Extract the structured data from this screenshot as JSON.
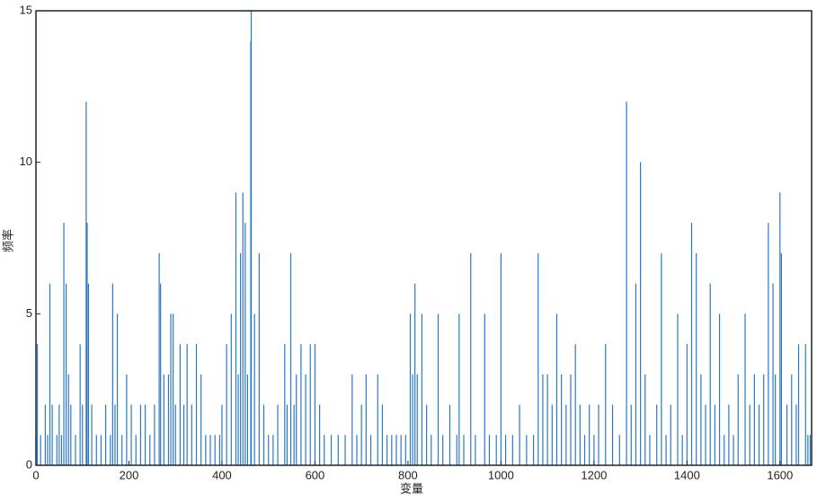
{
  "chart_data": {
    "type": "stem",
    "xlabel": "变量",
    "ylabel": "频率",
    "color": "#2b78c4",
    "xlim": [
      0,
      1668
    ],
    "ylim": [
      0,
      15
    ],
    "xticks": [
      0,
      200,
      400,
      600,
      800,
      1000,
      1200,
      1400,
      1600
    ],
    "yticks": [
      0,
      5,
      10,
      15
    ],
    "x": [
      0,
      3,
      10,
      20,
      25,
      30,
      35,
      45,
      50,
      55,
      60,
      65,
      70,
      75,
      85,
      95,
      100,
      108,
      110,
      113,
      120,
      130,
      140,
      150,
      160,
      165,
      170,
      175,
      185,
      195,
      205,
      215,
      225,
      235,
      245,
      255,
      265,
      268,
      275,
      285,
      290,
      295,
      300,
      310,
      318,
      325,
      335,
      345,
      355,
      365,
      375,
      385,
      395,
      400,
      410,
      420,
      430,
      435,
      440,
      445,
      450,
      455,
      462,
      463,
      470,
      480,
      490,
      500,
      510,
      520,
      535,
      540,
      548,
      555,
      560,
      570,
      580,
      590,
      600,
      610,
      620,
      635,
      650,
      665,
      680,
      690,
      700,
      710,
      720,
      735,
      745,
      755,
      765,
      775,
      785,
      795,
      805,
      810,
      815,
      820,
      830,
      840,
      850,
      865,
      875,
      890,
      905,
      910,
      920,
      935,
      945,
      965,
      975,
      990,
      1000,
      1010,
      1025,
      1040,
      1055,
      1070,
      1080,
      1090,
      1100,
      1110,
      1120,
      1130,
      1140,
      1150,
      1160,
      1170,
      1180,
      1190,
      1200,
      1210,
      1225,
      1240,
      1255,
      1270,
      1280,
      1290,
      1300,
      1310,
      1320,
      1335,
      1345,
      1355,
      1365,
      1380,
      1390,
      1400,
      1410,
      1420,
      1430,
      1440,
      1450,
      1460,
      1470,
      1480,
      1490,
      1500,
      1510,
      1525,
      1535,
      1545,
      1555,
      1565,
      1575,
      1585,
      1590,
      1600,
      1603,
      1615,
      1625,
      1635,
      1640,
      1655,
      1660,
      1665
    ],
    "values": [
      1,
      4,
      1,
      2,
      1,
      6,
      2,
      1,
      2,
      1,
      8,
      6,
      3,
      2,
      1,
      4,
      2,
      12,
      8,
      6,
      2,
      1,
      1,
      2,
      1,
      6,
      2,
      5,
      1,
      3,
      2,
      1,
      2,
      2,
      1,
      2,
      7,
      6,
      3,
      3,
      5,
      5,
      2,
      4,
      2,
      4,
      2,
      4,
      3,
      1,
      1,
      1,
      1,
      2,
      4,
      5,
      9,
      3,
      7,
      9,
      8,
      3,
      14,
      15,
      5,
      7,
      2,
      1,
      1,
      2,
      4,
      2,
      7,
      2,
      3,
      4,
      3,
      4,
      4,
      2,
      1,
      1,
      1,
      1,
      3,
      1,
      2,
      3,
      1,
      3,
      2,
      1,
      1,
      1,
      1,
      1,
      5,
      3,
      6,
      3,
      5,
      2,
      1,
      5,
      1,
      2,
      1,
      5,
      1,
      7,
      1,
      5,
      1,
      1,
      7,
      1,
      1,
      2,
      1,
      1,
      7,
      3,
      3,
      2,
      5,
      3,
      2,
      3,
      4,
      2,
      1,
      2,
      1,
      2,
      4,
      2,
      1,
      12,
      2,
      6,
      10,
      3,
      1,
      2,
      7,
      1,
      2,
      5,
      1,
      4,
      8,
      7,
      3,
      2,
      6,
      2,
      5,
      1,
      2,
      1,
      3,
      5,
      2,
      3,
      2,
      3,
      8,
      6,
      3,
      9,
      7,
      2,
      3,
      2,
      4,
      4,
      1,
      1
    ]
  }
}
